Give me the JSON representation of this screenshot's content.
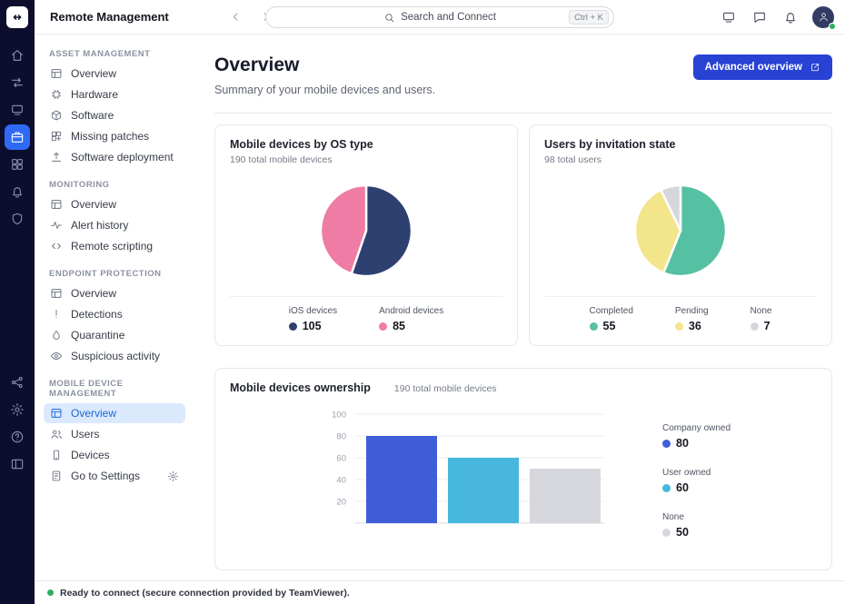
{
  "colors": {
    "rail_bg": "#0d0d2e",
    "accent_blue": "#2843d3",
    "active_rail_blue": "#2e6af5",
    "sidebar_active_bg": "#dbe9fc",
    "sidebar_active_text": "#1a66d9",
    "status_green": "#2fae5f"
  },
  "rail": {
    "top_icons": [
      {
        "name": "home",
        "icon": "home"
      },
      {
        "name": "connections",
        "icon": "connections"
      },
      {
        "name": "devices",
        "icon": "devices"
      },
      {
        "name": "remote-management",
        "icon": "remote-management",
        "active": true
      },
      {
        "name": "modules",
        "icon": "modules"
      },
      {
        "name": "notifications",
        "icon": "bell"
      },
      {
        "name": "organization",
        "icon": "shield"
      }
    ],
    "bottom_icons": [
      {
        "name": "network",
        "icon": "network"
      },
      {
        "name": "settings",
        "icon": "gear"
      },
      {
        "name": "help",
        "icon": "help"
      },
      {
        "name": "collapse-panel",
        "icon": "panel"
      }
    ]
  },
  "topbar": {
    "title": "Remote Management",
    "search_placeholder": "Search and Connect",
    "search_shortcut": "Ctrl + K",
    "action_icons": [
      {
        "name": "my-devices",
        "icon": "devices"
      },
      {
        "name": "chat",
        "icon": "chat"
      },
      {
        "name": "notifications",
        "icon": "bell"
      }
    ]
  },
  "sidebar": {
    "sections": [
      {
        "title": "ASSET MANAGEMENT",
        "items": [
          {
            "label": "Overview",
            "icon": "grid-overview"
          },
          {
            "label": "Hardware",
            "icon": "chip"
          },
          {
            "label": "Software",
            "icon": "box"
          },
          {
            "label": "Missing patches",
            "icon": "patch"
          },
          {
            "label": "Software deployment",
            "icon": "deploy"
          }
        ]
      },
      {
        "title": "MONITORING",
        "items": [
          {
            "label": "Overview",
            "icon": "grid-overview"
          },
          {
            "label": "Alert history",
            "icon": "pulse"
          },
          {
            "label": "Remote scripting",
            "icon": "code"
          }
        ]
      },
      {
        "title": "ENDPOINT PROTECTION",
        "items": [
          {
            "label": "Overview",
            "icon": "grid-overview"
          },
          {
            "label": "Detections",
            "icon": "alert"
          },
          {
            "label": "Quarantine",
            "icon": "droplet"
          },
          {
            "label": "Suspicious activity",
            "icon": "eye"
          }
        ]
      },
      {
        "title": "MOBILE DEVICE MANAGEMENT",
        "items": [
          {
            "label": "Overview",
            "icon": "grid-overview",
            "active": true
          },
          {
            "label": "Users",
            "icon": "users"
          },
          {
            "label": "Devices",
            "icon": "phone"
          },
          {
            "label": "Go to Settings",
            "icon": "doc-gear",
            "trailing_icon": "gear"
          }
        ]
      }
    ]
  },
  "main": {
    "title": "Overview",
    "subtitle": "Summary of your mobile devices and users.",
    "advanced_button_label": "Advanced overview"
  },
  "chart_data": [
    {
      "type": "pie",
      "title": "Mobile devices by OS type",
      "subtitle": "190 total mobile devices",
      "labels": [
        "iOS devices",
        "Android devices"
      ],
      "values": [
        105,
        85
      ],
      "colors": [
        "#2e4070",
        "#ee7ca4"
      ],
      "total": 190,
      "legend_position": "bottom"
    },
    {
      "type": "pie",
      "title": "Users by invitation state",
      "subtitle": "98 total users",
      "labels": [
        "Completed",
        "Pending",
        "None"
      ],
      "values": [
        55,
        36,
        7
      ],
      "colors": [
        "#56c0a2",
        "#f3e58b",
        "#d5d7dc"
      ],
      "total": 98,
      "legend_position": "bottom"
    },
    {
      "type": "bar",
      "title": "Mobile devices ownership",
      "subtitle": "190 total mobile devices",
      "categories": [
        "Company owned",
        "User owned",
        "None"
      ],
      "values": [
        80,
        60,
        50
      ],
      "colors": [
        "#3f5ed7",
        "#47b7de",
        "#d5d7dc"
      ],
      "yticks": [
        20,
        40,
        60,
        80,
        100
      ],
      "ylim": [
        0,
        100
      ],
      "grid": true,
      "legend_position": "right"
    }
  ],
  "statusbar": {
    "text": "Ready to connect (secure connection provided by TeamViewer)."
  }
}
